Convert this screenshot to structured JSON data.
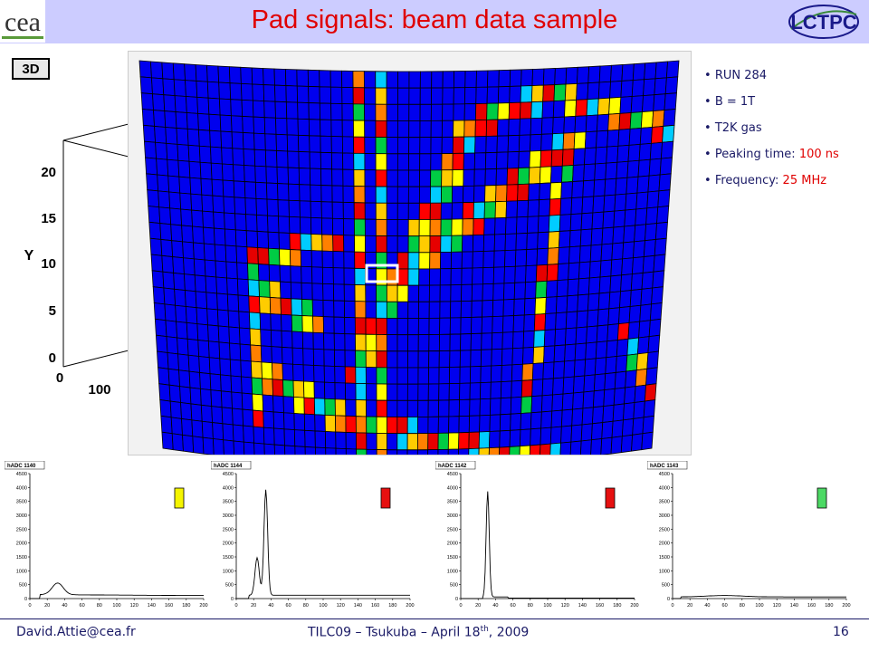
{
  "title": "Pad signals: beam data sample",
  "bullets": [
    {
      "text": "RUN 284"
    },
    {
      "text": "B = 1T"
    },
    {
      "text": "T2K gas"
    },
    {
      "text": "Peaking time: ",
      "highlight": "100 ns"
    },
    {
      "text": "Frequency: ",
      "highlight": "25 MHz"
    }
  ],
  "bg_plot": {
    "button": "3D",
    "y_axis_label": "Y",
    "y_ticks": [
      "20",
      "15",
      "10",
      "5",
      "0"
    ],
    "x_ticks": [
      "0",
      "100"
    ]
  },
  "histograms": [
    {
      "name": "hADC 1140",
      "marker_color": "#f5f500"
    },
    {
      "name": "hADC 1144",
      "marker_color": "#e61010"
    },
    {
      "name": "hADC 1142",
      "marker_color": "#e61010"
    },
    {
      "name": "hADC 1143",
      "marker_color": "#4cd964"
    }
  ],
  "hist_y_ticks": [
    "4500",
    "4000",
    "3500",
    "3000",
    "2500",
    "2000",
    "1500",
    "1000",
    "500",
    "0"
  ],
  "hist_x_ticks": [
    "0",
    "20",
    "40",
    "60",
    "80",
    "100",
    "120",
    "140",
    "160",
    "180",
    "200"
  ],
  "footer": {
    "email": "David.Attie@cea.fr",
    "conference": "TILC09 – Tsukuba – April 18",
    "conference_sup": "th",
    "conference_tail": ", 2009",
    "page": "16"
  },
  "logos": {
    "left": "cea",
    "right": "LC TPC"
  }
}
